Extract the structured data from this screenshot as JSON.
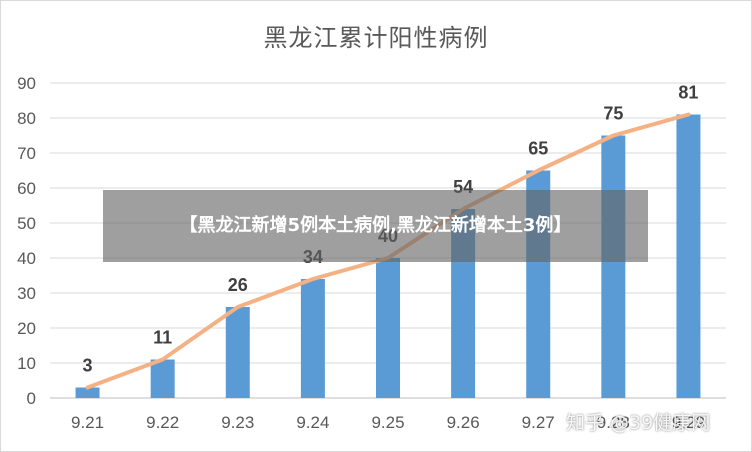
{
  "chart_data": {
    "type": "bar",
    "title": "黑龙江累计阳性病例",
    "categories": [
      "9.21",
      "9.22",
      "9.23",
      "9.24",
      "9.25",
      "9.26",
      "9.27",
      "9.28",
      "9.29"
    ],
    "series": [
      {
        "type": "bar",
        "values": [
          3,
          11,
          26,
          34,
          40,
          54,
          65,
          75,
          81
        ],
        "color": "#5b9bd5"
      },
      {
        "type": "line",
        "values": [
          3,
          11,
          26,
          34,
          40,
          54,
          65,
          75,
          81
        ],
        "color": "#f4b183"
      }
    ],
    "ylim": [
      0,
      90
    ],
    "yticks": [
      0,
      10,
      20,
      30,
      40,
      50,
      60,
      70,
      80,
      90
    ],
    "grid": true,
    "legend": "none"
  },
  "banner": {
    "text": "【黑龙江新增5例本土病例,黑龙江新增本土3例】"
  },
  "watermark": {
    "text": "知乎 @39健康网"
  }
}
